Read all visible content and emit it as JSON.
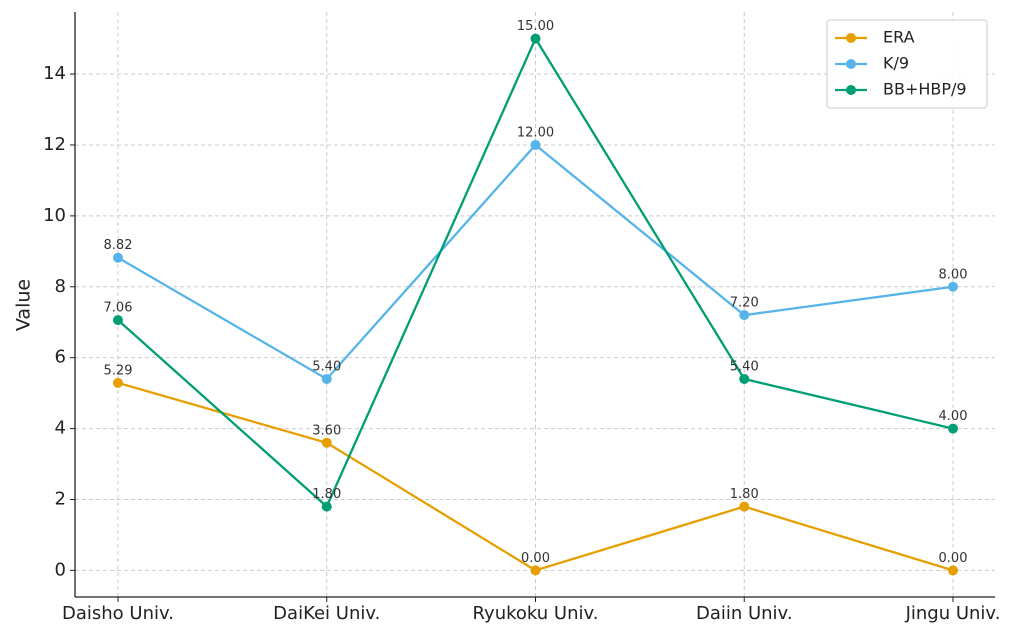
{
  "chart_data": {
    "type": "line",
    "y_label": "Value",
    "categories": [
      "Daisho Univ.",
      "DaiKei Univ.",
      "Ryukoku Univ.",
      "Daiin Univ.",
      "Jingu Univ."
    ],
    "series": [
      {
        "name": "ERA",
        "color": "#E69F00",
        "values": [
          5.29,
          3.6,
          0,
          1.8,
          0
        ],
        "value_labels": [
          "5.29",
          "3.60",
          "0.00",
          "1.80",
          "0.00"
        ]
      },
      {
        "name": "K/9",
        "color": "#56B4E9",
        "values": [
          8.82,
          5.4,
          12,
          7.2,
          8
        ],
        "value_labels": [
          "8.82",
          "5.40",
          "12.00",
          "7.20",
          "8.00"
        ]
      },
      {
        "name": "BB+HBP/9",
        "color": "#009E73",
        "values": [
          7.06,
          1.8,
          15,
          5.4,
          4
        ],
        "value_labels": [
          "7.06",
          "1.80",
          "15.00",
          "5.40",
          "4.00"
        ]
      }
    ],
    "ylim": [
      -0.75,
      15.75
    ],
    "yticks": [
      0,
      2,
      4,
      6,
      8,
      10,
      12,
      14
    ],
    "grid": true,
    "legend": "upper right"
  }
}
